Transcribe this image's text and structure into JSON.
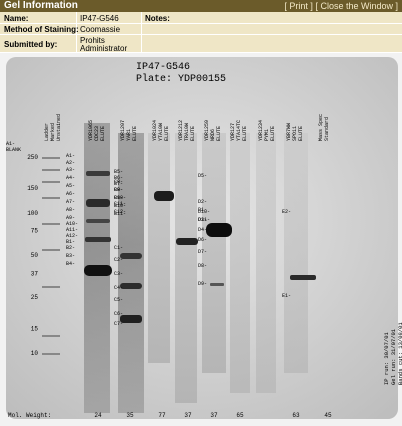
{
  "window": {
    "title": "Gel Information",
    "print_link": "[ Print ]",
    "close_link": "[ Close the Window ]"
  },
  "info": {
    "name_label": "Name:",
    "name_value": "IP47-G546",
    "method_label": "Method of Staining:",
    "method_value": "Coomassie",
    "submitted_label": "Submitted by:",
    "submitted_value_line1": "Prohits",
    "submitted_value_line2": "Administrator",
    "notes_label": "Notes:"
  },
  "gel": {
    "title_line1": "IP47-G546",
    "title_line2": "Plate: YDP00155",
    "side_label_line1": "A1-",
    "side_label_line2": "BLANK",
    "mw_markers": [
      {
        "label": "250",
        "value": 250
      },
      {
        "label": "150",
        "value": 150
      },
      {
        "label": "100",
        "value": 100
      },
      {
        "label": "75",
        "value": 75
      },
      {
        "label": "50",
        "value": 50
      },
      {
        "label": "37",
        "value": 37
      },
      {
        "label": "25",
        "value": 25
      },
      {
        "label": "15",
        "value": 15
      },
      {
        "label": "10",
        "value": 10
      }
    ],
    "lanes": [
      {
        "header": [
          "Ladder",
          "Marked",
          "Unstained"
        ],
        "mol_weight": ""
      },
      {
        "header": [
          "YDR1065",
          "CDC23",
          "ELUTE"
        ],
        "mol_weight": "24"
      },
      {
        "header": [
          "YDR1207",
          "YAR1",
          "ELUTE"
        ],
        "mol_weight": "35"
      },
      {
        "header": [
          "YDR1024",
          "YTA10W",
          "ELUTE"
        ],
        "mol_weight": "77"
      },
      {
        "header": [
          "YDR1212",
          "TRA10W",
          "ELUTE"
        ],
        "mol_weight": "37"
      },
      {
        "header": [
          "YDR1259",
          "NRD6",
          "ELUTE"
        ],
        "mol_weight": "37"
      },
      {
        "header": [
          "YDR127",
          "YTA14TC",
          "ELUTE"
        ],
        "mol_weight": "65"
      },
      {
        "header": [
          "YDR1234",
          "PYM1",
          "ELUTE"
        ],
        "mol_weight": ""
      },
      {
        "header": [
          "YBR7WW",
          "SPO11",
          "ELUTE"
        ],
        "mol_weight": "63"
      },
      {
        "header": [
          "Mass Spec",
          "Standard"
        ],
        "mol_weight": "45"
      }
    ],
    "band_labels": [
      "A1-",
      "A2-",
      "A3-",
      "A4-",
      "A5-",
      "A6-",
      "A7-",
      "A8-",
      "A9-",
      "A10-",
      "A11-",
      "A12-",
      "B1-",
      "B2-",
      "B3-",
      "B4-",
      "B5-",
      "B6-",
      "B7-",
      "B8-",
      "B9-",
      "B10-",
      "B11-",
      "C1-",
      "C2-",
      "C3-",
      "C4-",
      "C5-",
      "C6-",
      "C7-",
      "C8-",
      "C9-",
      "C10-",
      "C11-",
      "C12-",
      "D1-",
      "D2-",
      "D3-",
      "D4-",
      "D5-",
      "D6-",
      "D7-",
      "D8-",
      "D9-",
      "D10-",
      "D11-",
      "E1-",
      "E2-"
    ],
    "mol_weight_label": "Mol. Weight:",
    "footer_lines": [
      "IP run: 30/07/01",
      "Gel run: 31/07/01",
      "Bands cut: 13/08/01",
      "Action: PLA",
      "Gel type: Tris-glycine 10-20%"
    ]
  },
  "colors": {
    "titlebar": "#6b5b2a",
    "info_background": "#efe6c6",
    "gel_background": "#d8d8d8"
  }
}
